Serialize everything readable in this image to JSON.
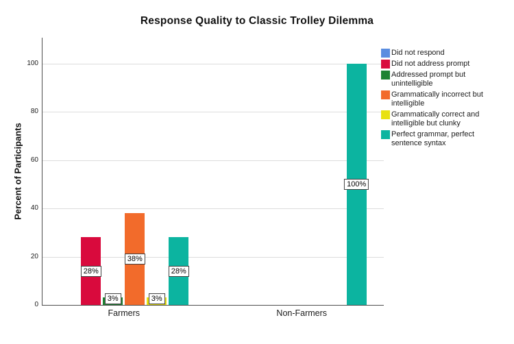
{
  "chart_data": {
    "type": "bar",
    "title": "Response Quality to Classic Trolley Dilemma",
    "ylabel": "Percent of Participants",
    "xlabel": "",
    "categories": [
      "Farmers",
      "Non-Farmers"
    ],
    "series": [
      {
        "name": "Did not respond",
        "name_lines": [
          "Did not respond"
        ],
        "color": "#5A8DE0",
        "values": [
          0,
          0
        ],
        "labels": [
          "",
          ""
        ]
      },
      {
        "name": "Did not address prompt",
        "name_lines": [
          "Did not address prompt"
        ],
        "color": "#D90A3D",
        "values": [
          28,
          0
        ],
        "labels": [
          "28%",
          ""
        ]
      },
      {
        "name": "Addressed prompt but unintelligible",
        "name_lines": [
          "Addressed prompt but",
          "unintelligible"
        ],
        "color": "#1E8232",
        "values": [
          3,
          0
        ],
        "labels": [
          "3%",
          ""
        ]
      },
      {
        "name": "Grammatically incorrect but intelligible",
        "name_lines": [
          "Grammatically incorrect but",
          "intelligible"
        ],
        "color": "#F26B2B",
        "values": [
          38,
          0
        ],
        "labels": [
          "38%",
          ""
        ]
      },
      {
        "name": "Grammatically correct and intelligible but clunky",
        "name_lines": [
          "Grammatically correct and",
          "intelligible but clunky"
        ],
        "color": "#E8E111",
        "values": [
          3,
          0
        ],
        "labels": [
          "3%",
          ""
        ]
      },
      {
        "name": "Perfect grammar, perfect sentence syntax",
        "name_lines": [
          "Perfect grammar, perfect",
          "sentence syntax"
        ],
        "color": "#0CB4A0",
        "values": [
          28,
          100
        ],
        "labels": [
          "28%",
          "100%"
        ]
      }
    ],
    "ylim": [
      0,
      100
    ],
    "yticks": [
      0,
      20,
      40,
      60,
      80,
      100
    ],
    "grid": "horizontal",
    "legend_position": "right"
  }
}
